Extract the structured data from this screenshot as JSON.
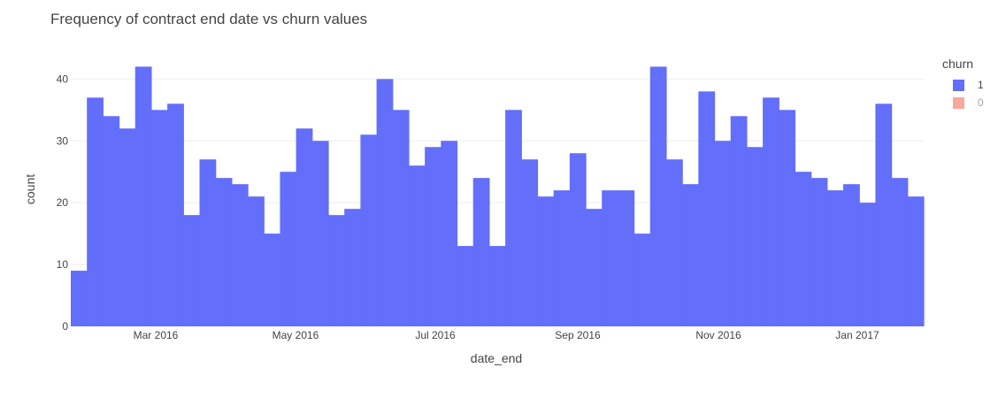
{
  "chart_data": {
    "type": "bar",
    "title": "Frequency of contract end date vs churn values",
    "xlabel": "date_end",
    "ylabel": "count",
    "ylim": [
      0,
      44.2
    ],
    "y_ticks": [
      0,
      10,
      20,
      30,
      40
    ],
    "x_tick_labels": [
      "Mar 2016",
      "May 2016",
      "Jul 2016",
      "Sep 2016",
      "Nov 2016",
      "Jan 2017"
    ],
    "legend": {
      "title": "churn",
      "placement": "top-right",
      "entries": [
        {
          "label": "1",
          "color": "#636efa",
          "active": true
        },
        {
          "label": "0",
          "color": "#ef553b",
          "active": false
        }
      ]
    },
    "grid": true,
    "series": [
      {
        "name": "1",
        "color": "#636efa",
        "values": [
          9,
          37,
          34,
          32,
          42,
          35,
          36,
          18,
          27,
          24,
          23,
          21,
          15,
          25,
          32,
          30,
          18,
          19,
          31,
          40,
          35,
          26,
          29,
          30,
          13,
          24,
          13,
          35,
          27,
          21,
          22,
          28,
          19,
          22,
          22,
          15,
          42,
          27,
          23,
          38,
          30,
          34,
          29,
          37,
          35,
          25,
          24,
          22,
          23,
          20,
          36,
          24,
          21
        ]
      }
    ]
  }
}
